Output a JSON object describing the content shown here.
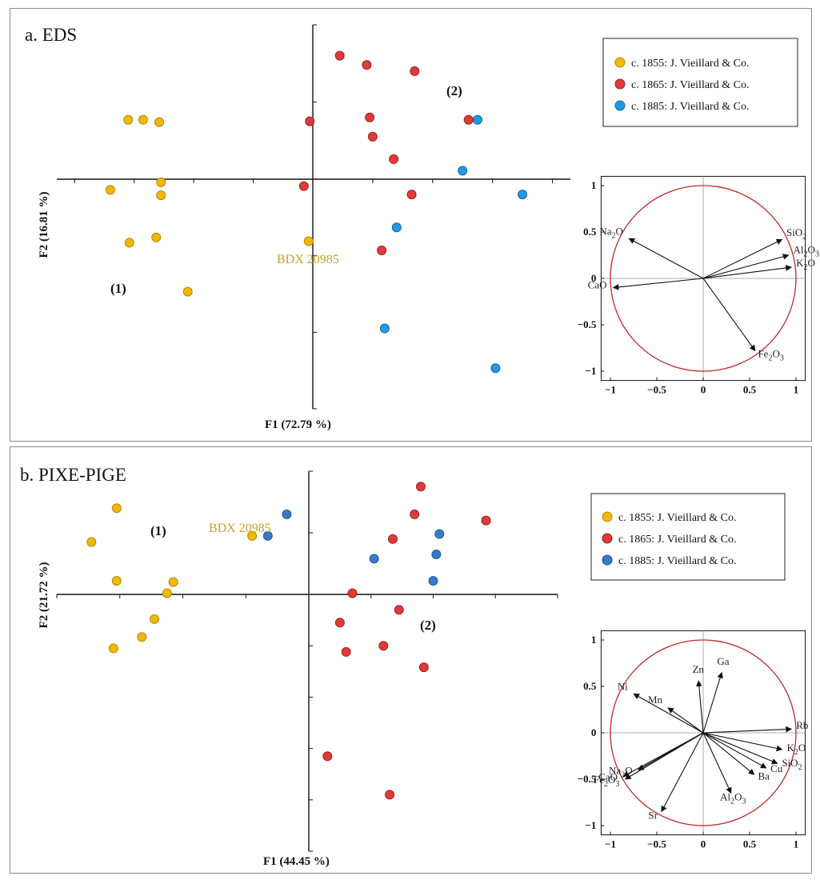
{
  "colors": {
    "c1855": "#f2b705",
    "c1865": "#e03a3a",
    "c1885a": "#1e9be6",
    "c1885b": "#3a78c8",
    "annotation": "#c9a227",
    "circle": "#c0282d"
  },
  "legend": [
    {
      "key": "c1855",
      "label": "c. 1855: J. Vieillard & Co."
    },
    {
      "key": "c1865",
      "label": "c. 1865: J. Vieillard & Co."
    },
    {
      "key": "c1885",
      "label": "c. 1885: J. Vieillard & Co."
    }
  ],
  "chart_data": [
    {
      "type": "scatter",
      "title": "a. EDS",
      "xlabel": "F1 (72.79 %)",
      "ylabel": "F2 (16.81 %)",
      "xlim": [
        -4.3,
        4.3
      ],
      "ylim": [
        -3.0,
        2.0
      ],
      "legend_position": "top-right",
      "series": [
        {
          "key": "c1855",
          "name": "c. 1855: J. Vieillard & Co.",
          "points": [
            [
              -3.1,
              0.77
            ],
            [
              -2.85,
              0.77
            ],
            [
              -2.58,
              0.74
            ],
            [
              -2.55,
              -0.04
            ],
            [
              -2.55,
              -0.21
            ],
            [
              -3.4,
              -0.14
            ],
            [
              -2.63,
              -0.76
            ],
            [
              -3.08,
              -0.83
            ],
            [
              -2.1,
              -1.47
            ],
            [
              -0.07,
              -0.81
            ]
          ]
        },
        {
          "key": "c1865",
          "name": "c. 1865: J. Vieillard & Co.",
          "points": [
            [
              0.45,
              1.6
            ],
            [
              0.9,
              1.48
            ],
            [
              1.7,
              1.4
            ],
            [
              -0.05,
              0.75
            ],
            [
              0.95,
              0.8
            ],
            [
              1.0,
              0.55
            ],
            [
              1.35,
              0.26
            ],
            [
              -0.15,
              -0.09
            ],
            [
              1.65,
              -0.2
            ],
            [
              1.15,
              -0.93
            ],
            [
              2.6,
              0.77
            ]
          ]
        },
        {
          "key": "c1885",
          "name": "c. 1885: J. Vieillard & Co.",
          "points": [
            [
              2.75,
              0.77
            ],
            [
              2.5,
              0.11
            ],
            [
              3.5,
              -0.2
            ],
            [
              1.4,
              -0.63
            ],
            [
              1.2,
              -1.95
            ],
            [
              3.05,
              -2.47
            ]
          ]
        }
      ],
      "labels": {
        "group1": "(1)",
        "group2": "(2)",
        "sample": "BDX 20985"
      },
      "loadings": {
        "xlim": [
          -1.1,
          1.1
        ],
        "ylim": [
          -1.1,
          1.1
        ],
        "ticks_x": [
          "−1",
          "−0.5",
          "0",
          "0.5",
          "1"
        ],
        "ticks_y": [
          "1",
          "0.5",
          "0",
          "−0.5",
          "−1"
        ],
        "vectors": [
          {
            "sym": "Na",
            "sub": "2",
            "rest": "O",
            "x": -0.8,
            "y": 0.43
          },
          {
            "sym": "CaO",
            "sub": "",
            "rest": "",
            "x": -0.97,
            "y": -0.1
          },
          {
            "sym": "SiO",
            "sub": "2",
            "rest": "",
            "x": 0.85,
            "y": 0.42
          },
          {
            "sym": "Al",
            "sub": "2",
            "rest": "O3",
            "x": 0.92,
            "y": 0.25
          },
          {
            "sym": "K",
            "sub": "2",
            "rest": "O",
            "x": 0.95,
            "y": 0.12
          },
          {
            "sym": "Fe",
            "sub": "2",
            "rest": "O3",
            "x": 0.56,
            "y": -0.78
          }
        ]
      }
    },
    {
      "type": "scatter",
      "title": "b. PIXE-PIGE",
      "xlabel": "F1 (44.45 %)",
      "ylabel": "F2 (21.72 %)",
      "xlim": [
        -4.0,
        4.0
      ],
      "ylim": [
        -5.0,
        2.0
      ],
      "legend_position": "top-right",
      "series": [
        {
          "key": "c1855",
          "name": "c. 1855: J. Vieillard & Co.",
          "points": [
            [
              -3.05,
              1.4
            ],
            [
              -3.45,
              0.85
            ],
            [
              -3.05,
              0.22
            ],
            [
              -2.15,
              0.2
            ],
            [
              -2.25,
              0.02
            ],
            [
              -2.45,
              -0.48
            ],
            [
              -2.65,
              -0.83
            ],
            [
              -3.1,
              -1.05
            ],
            [
              -0.9,
              0.95
            ]
          ]
        },
        {
          "key": "c1865",
          "name": "c. 1865: J. Vieillard & Co.",
          "points": [
            [
              1.8,
              1.75
            ],
            [
              1.7,
              1.3
            ],
            [
              2.85,
              1.2
            ],
            [
              1.35,
              0.9
            ],
            [
              0.7,
              0.02
            ],
            [
              1.45,
              -0.3
            ],
            [
              0.5,
              -0.55
            ],
            [
              1.2,
              -1.0
            ],
            [
              0.6,
              -1.12
            ],
            [
              1.85,
              -1.42
            ],
            [
              0.3,
              -3.15
            ],
            [
              1.3,
              -3.9
            ]
          ]
        },
        {
          "key": "c1885",
          "name": "c. 1885: J. Vieillard & Co.",
          "points": [
            [
              -0.35,
              1.3
            ],
            [
              -0.65,
              0.95
            ],
            [
              2.1,
              0.98
            ],
            [
              1.05,
              0.58
            ],
            [
              2.05,
              0.65
            ],
            [
              2.0,
              0.22
            ]
          ]
        }
      ],
      "labels": {
        "group1": "(1)",
        "group2": "(2)",
        "sample": "BDX 20985"
      },
      "loadings": {
        "xlim": [
          -1.1,
          1.1
        ],
        "ylim": [
          -1.1,
          1.1
        ],
        "ticks_x": [
          "−1",
          "−0.5",
          "0",
          "0.5",
          "1"
        ],
        "ticks_y": [
          "1",
          "0.5",
          "0",
          "−0.5",
          "−1"
        ],
        "vectors": [
          {
            "sym": "Ni",
            "sub": "",
            "rest": "",
            "x": -0.75,
            "y": 0.42
          },
          {
            "sym": "Mn",
            "sub": "",
            "rest": "",
            "x": -0.38,
            "y": 0.27
          },
          {
            "sym": "Zn",
            "sub": "",
            "rest": "",
            "x": -0.05,
            "y": 0.56
          },
          {
            "sym": "Ga",
            "sub": "",
            "rest": "",
            "x": 0.2,
            "y": 0.65
          },
          {
            "sym": "Rb",
            "sub": "",
            "rest": "",
            "x": 0.95,
            "y": 0.04
          },
          {
            "sym": "K",
            "sub": "2",
            "rest": "O",
            "x": 0.85,
            "y": -0.18
          },
          {
            "sym": "SiO",
            "sub": "2",
            "rest": "",
            "x": 0.8,
            "y": -0.33
          },
          {
            "sym": "Cu",
            "sub": "",
            "rest": "",
            "x": 0.68,
            "y": -0.38
          },
          {
            "sym": "Ba",
            "sub": "",
            "rest": "",
            "x": 0.55,
            "y": -0.45
          },
          {
            "sym": "Al",
            "sub": "2",
            "rest": "O3",
            "x": 0.3,
            "y": -0.65
          },
          {
            "sym": "Sr",
            "sub": "",
            "rest": "",
            "x": -0.45,
            "y": -0.85
          },
          {
            "sym": "Na",
            "sub": "2",
            "rest": "O",
            "x": -0.7,
            "y": -0.4
          },
          {
            "sym": "CaO",
            "sub": "",
            "rest": "",
            "x": -0.86,
            "y": -0.47
          },
          {
            "sym": "Fe",
            "sub": "2",
            "rest": "O3",
            "x": -0.84,
            "y": -0.5
          }
        ]
      }
    }
  ]
}
